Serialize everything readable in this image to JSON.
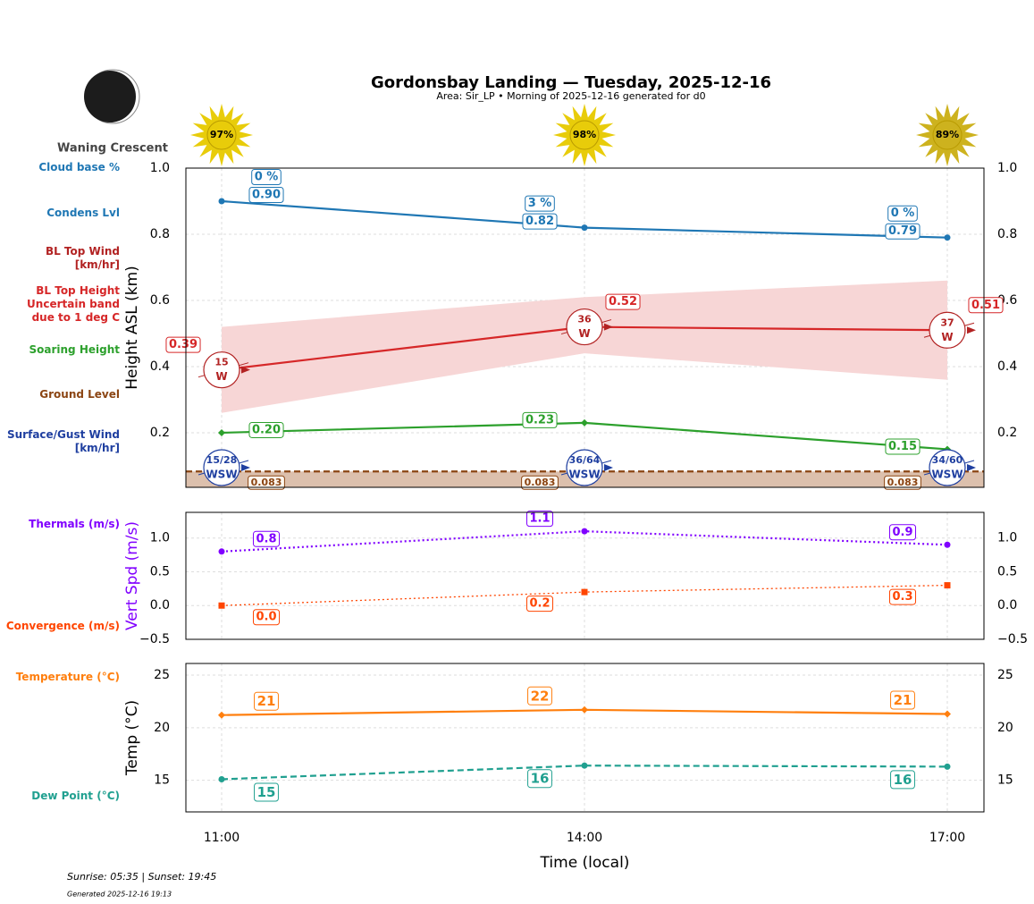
{
  "header": {
    "title": "Gordonsbay Landing — Tuesday, 2025-12-16",
    "subtitle": "Area: Sir_LP • Morning of 2025-12-16 generated for d0"
  },
  "moon": {
    "phase": "Waning Crescent"
  },
  "sun": {
    "values": [
      97,
      98,
      89
    ],
    "value_labels": [
      "97%",
      "98%",
      "89%"
    ],
    "colors": [
      "#e8cc0a",
      "#e8cc0a",
      "#cdb21e"
    ]
  },
  "chart_data": [
    {
      "type": "line",
      "ylabel": "Height ASL (km)",
      "ylim": [
        0.035,
        1.0
      ],
      "yticks": [
        0.2,
        0.4,
        0.6,
        0.8,
        {
          "value": 1,
          "label": "1.0"
        }
      ],
      "grid": true,
      "series": [
        {
          "name": "Condens Lvl",
          "color": "#1f77b4",
          "marker": "circle",
          "values": [
            0.9,
            0.82,
            0.79
          ],
          "value_labels": [
            "0.90",
            "0.82",
            "0.79"
          ],
          "cloud_base": {
            "name": "Cloud base %",
            "values": [
              0,
              3,
              0
            ],
            "value_labels": [
              "0 %",
              "3 %",
              "0 %"
            ]
          }
        },
        {
          "name": "BL Top Height\nUncertain band\ndue to 1 deg C",
          "color": "#d62728",
          "values": [
            0.39,
            0.52,
            0.51
          ],
          "band": {
            "lower": [
              0.26,
              0.44,
              0.36
            ],
            "upper": [
              0.52,
              0.61,
              0.66
            ],
            "color": "#f7d6d6"
          }
        },
        {
          "name": "Soaring Height",
          "color": "#2ca02c",
          "marker": "diamond",
          "values": [
            0.2,
            0.23,
            0.15
          ],
          "value_labels": [
            "0.20",
            "0.23",
            "0.15"
          ]
        },
        {
          "name": "Ground Level",
          "color": "#8b4513",
          "dash": "dashed",
          "fill": "#dcc0ad",
          "values": [
            0.083,
            0.083,
            0.083
          ]
        }
      ],
      "winds": [
        {
          "name": "BL Top Wind\n[km/hr]",
          "color": "#b22222",
          "values": [
            15,
            36,
            37
          ],
          "directions": [
            "W",
            "W",
            "W"
          ]
        },
        {
          "name": "Surface/Gust Wind\n[km/hr]",
          "color": "#1f3fa0",
          "values": [
            15,
            36,
            34
          ],
          "gusts": [
            28,
            64,
            60
          ],
          "value_labels": [
            "15/28",
            "36/64",
            "34/60"
          ],
          "directions": [
            "WSW",
            "WSW",
            "WSW"
          ]
        }
      ]
    },
    {
      "type": "line",
      "ylabel": "Vert Spd (m/s)",
      "ylabel_color": "#8000ff",
      "ylim": [
        -0.5,
        1.38
      ],
      "yticks": [
        {
          "value": -0.5,
          "label": "−0.5"
        },
        {
          "value": 0,
          "label": "0.0"
        },
        0.5,
        {
          "value": 1,
          "label": "1.0"
        }
      ],
      "grid": true,
      "series": [
        {
          "name": "Thermals (m/s)",
          "color": "#8000ff",
          "dash": "dotted",
          "marker": "circle",
          "values": [
            0.8,
            1.1,
            0.9
          ]
        },
        {
          "name": "Convergence (m/s)",
          "color": "#ff4500",
          "dash": "dotted",
          "marker": "square",
          "values": [
            0,
            0.2,
            0.3
          ],
          "value_labels": [
            "0.0",
            "0.2",
            "0.3"
          ]
        }
      ]
    },
    {
      "type": "line",
      "ylabel": "Temp (°C)",
      "xlabel": "Time (local)",
      "categories": [
        "11:00",
        "14:00",
        "17:00"
      ],
      "ylim": [
        12,
        26.1
      ],
      "yticks": [
        15,
        20,
        25
      ],
      "grid": true,
      "series": [
        {
          "name": "Temperature (°C)",
          "color": "#ff7f0e",
          "marker": "diamond",
          "values": [
            21.2,
            21.7,
            21.3
          ],
          "value_labels": [
            "21",
            "22",
            "21"
          ]
        },
        {
          "name": "Dew Point (°C)",
          "color": "#20a090",
          "dash": "dashed",
          "marker": "circle",
          "values": [
            15.1,
            16.4,
            16.3
          ],
          "value_labels": [
            "15",
            "16",
            "16"
          ]
        }
      ]
    }
  ],
  "footer": {
    "sun_times": "Sunrise: 05:35 | Sunset: 19:45",
    "generated": "Generated 2025-12-16 19:13"
  }
}
